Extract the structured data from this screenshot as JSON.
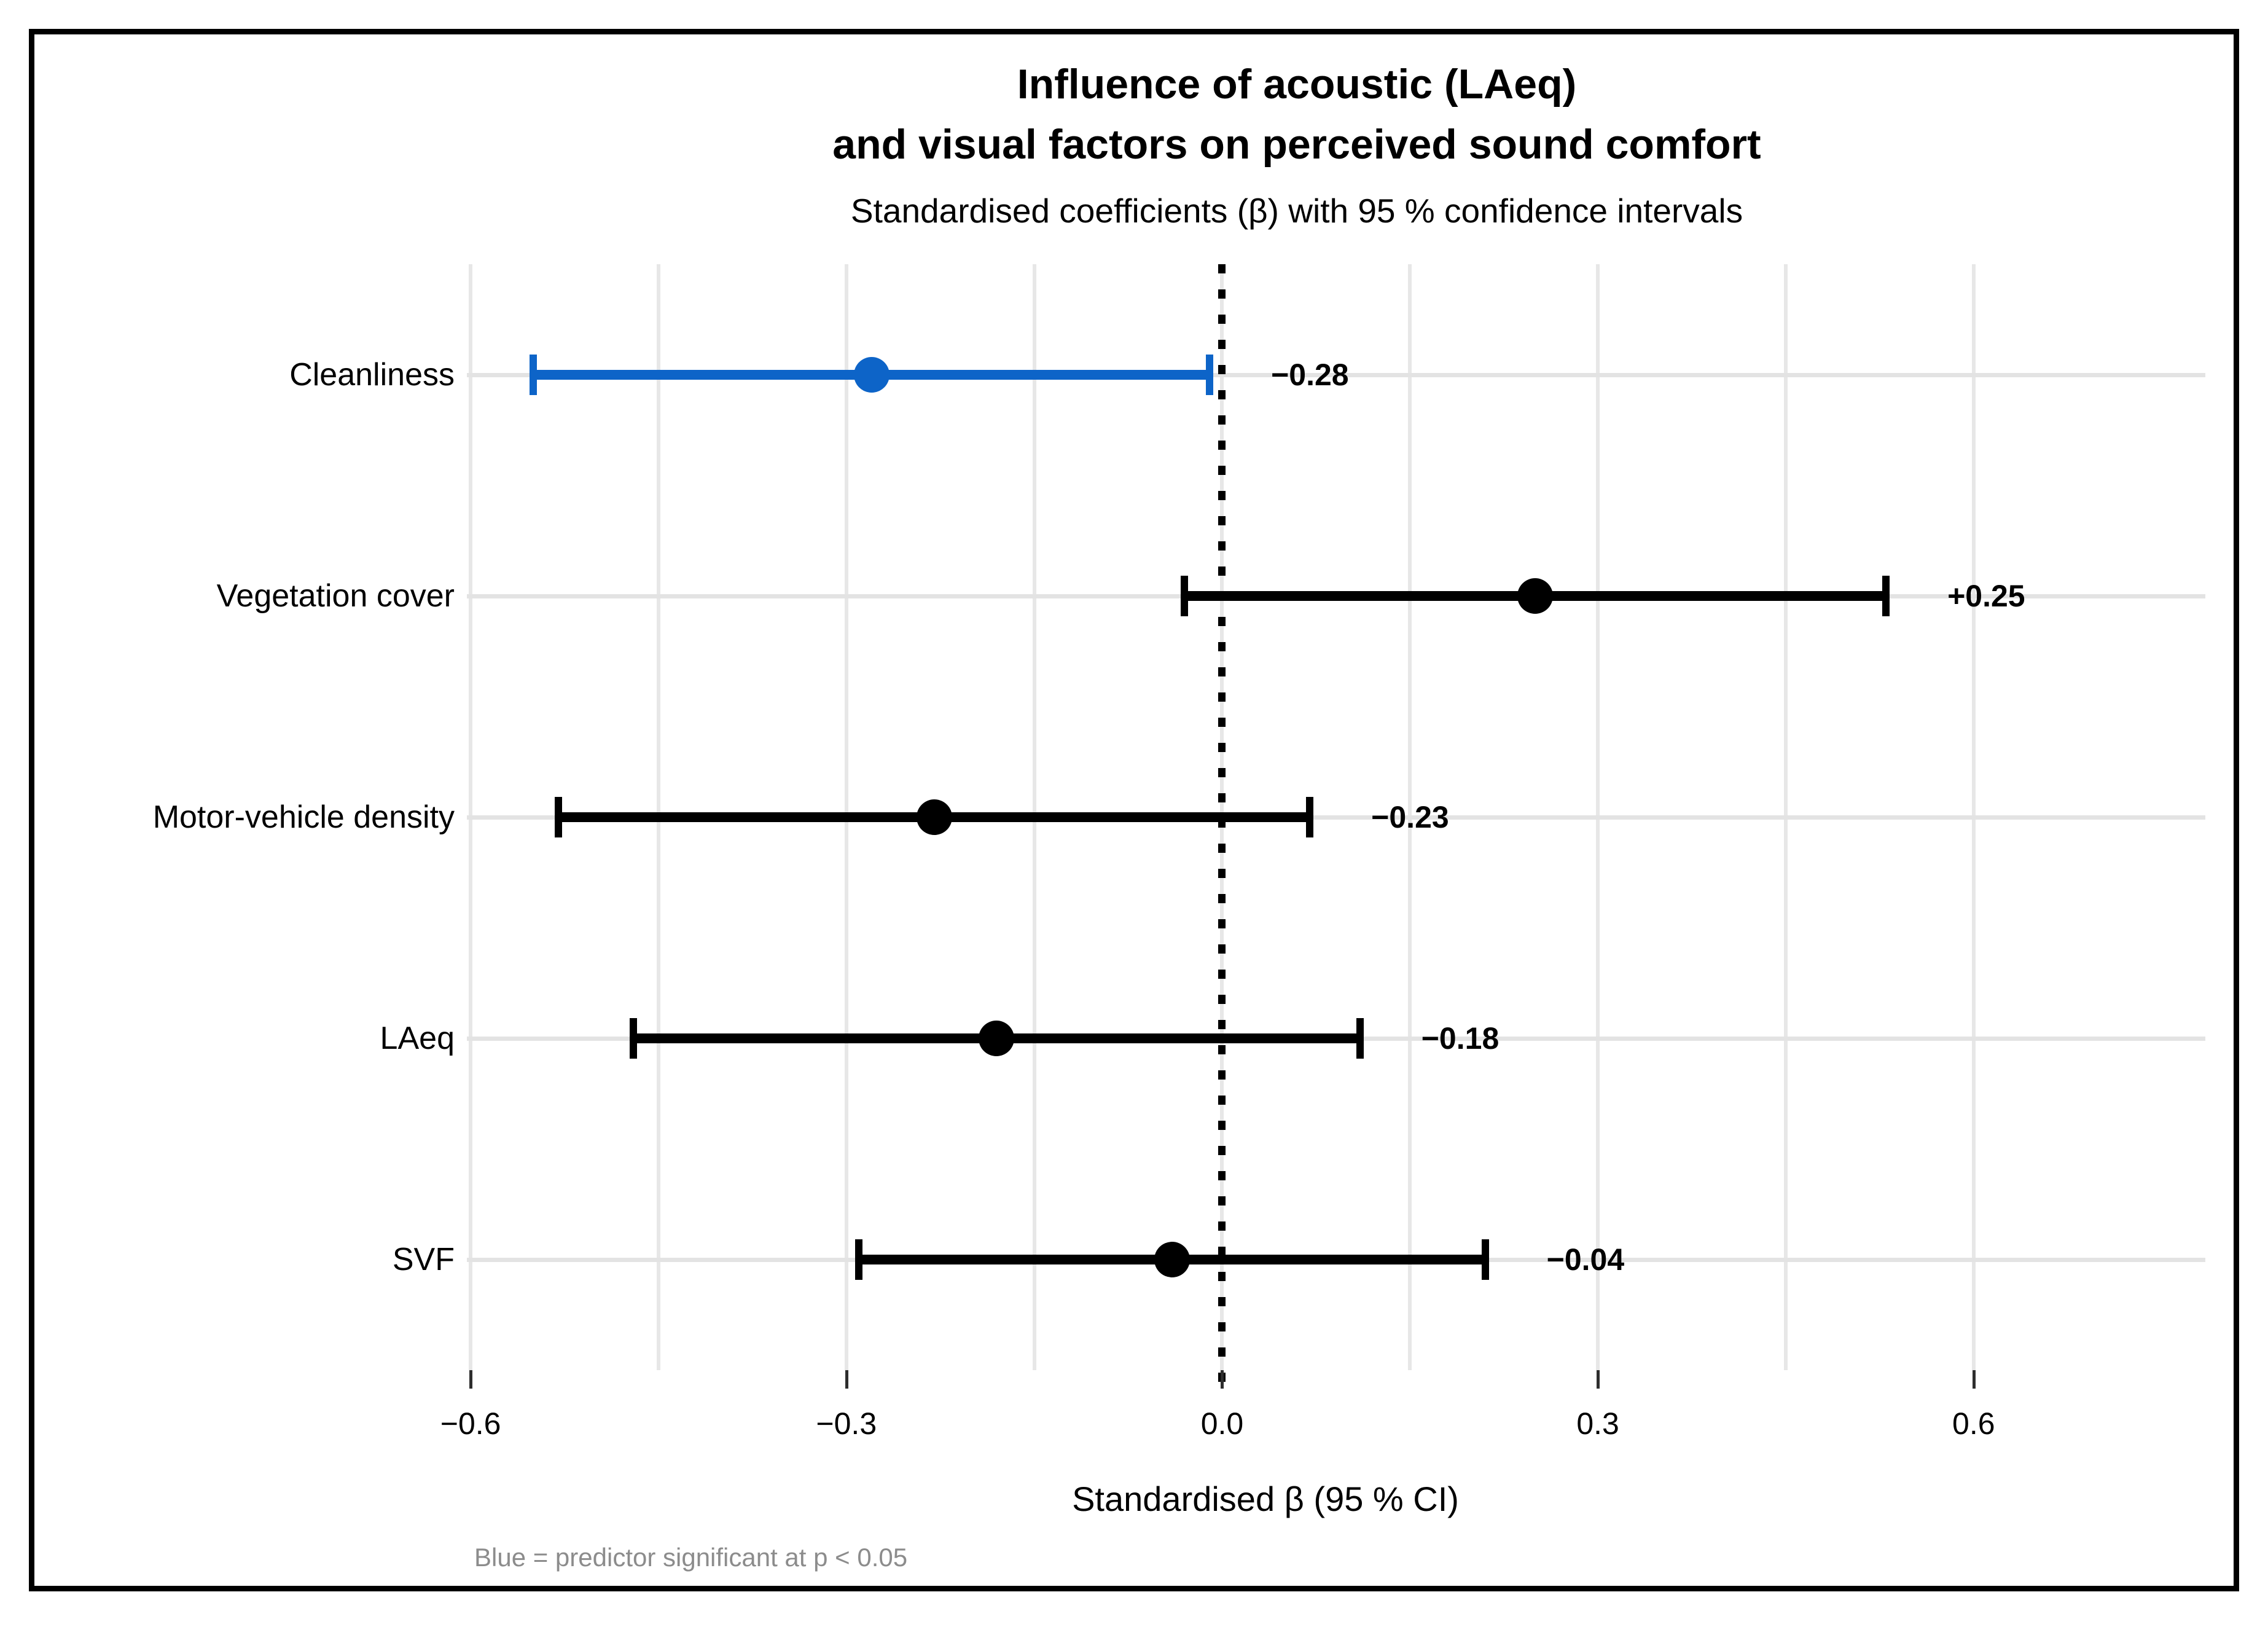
{
  "figure": {
    "title_line1": "Influence of acoustic (LAeq)",
    "title_line2": "and visual factors on perceived sound comfort",
    "subtitle": "Standardised coefficients (β) with 95 % confidence intervals",
    "x_axis_title": "Standardised β  (95 % CI)",
    "caption": "Blue = predictor significant at p < 0.05"
  },
  "chart_data": {
    "type": "scatter",
    "subtype": "horizontal forest plot (dot-and-whisker, 95% CI error bars)",
    "title": "Influence of acoustic (LAeq) and visual factors on perceived sound comfort",
    "subtitle": "Standardised coefficients (β) with 95 % confidence intervals",
    "xlabel": "Standardised β  (95 % CI)",
    "ylabel": "",
    "categories": [
      "Cleanliness",
      "Vegetation cover",
      "Motor-vehicle density",
      "LAeq",
      "SVF"
    ],
    "points": [
      {
        "label": "Cleanliness",
        "beta": -0.28,
        "ci_low": -0.55,
        "ci_high": -0.01,
        "value_label": "−0.28",
        "significant": true
      },
      {
        "label": "Vegetation cover",
        "beta": 0.25,
        "ci_low": -0.03,
        "ci_high": 0.53,
        "value_label": "+0.25",
        "significant": false
      },
      {
        "label": "Motor-vehicle density",
        "beta": -0.23,
        "ci_low": -0.53,
        "ci_high": 0.07,
        "value_label": "−0.23",
        "significant": false
      },
      {
        "label": "LAeq",
        "beta": -0.18,
        "ci_low": -0.47,
        "ci_high": 0.11,
        "value_label": "−0.18",
        "significant": false
      },
      {
        "label": "SVF",
        "beta": -0.04,
        "ci_low": -0.29,
        "ci_high": 0.21,
        "value_label": "−0.04",
        "significant": false
      }
    ],
    "x_ticks": [
      {
        "value": -0.6,
        "label": "−0.6"
      },
      {
        "value": -0.3,
        "label": "−0.3"
      },
      {
        "value": 0.0,
        "label": "0.0"
      },
      {
        "value": 0.3,
        "label": "0.3"
      },
      {
        "value": 0.6,
        "label": "0.6"
      }
    ],
    "x_minor_step": 0.15,
    "xlim": [
      -0.603,
      0.785
    ],
    "grid": "on",
    "legend": "none",
    "zero_line": {
      "x": 0,
      "style": "dotted",
      "color": "#000000"
    },
    "colors": {
      "significant_blue": "#0d64c8",
      "nonsignificant_black": "#000000",
      "gridline": "#e7e7e7",
      "caption_gray": "#8c8c8c"
    }
  }
}
